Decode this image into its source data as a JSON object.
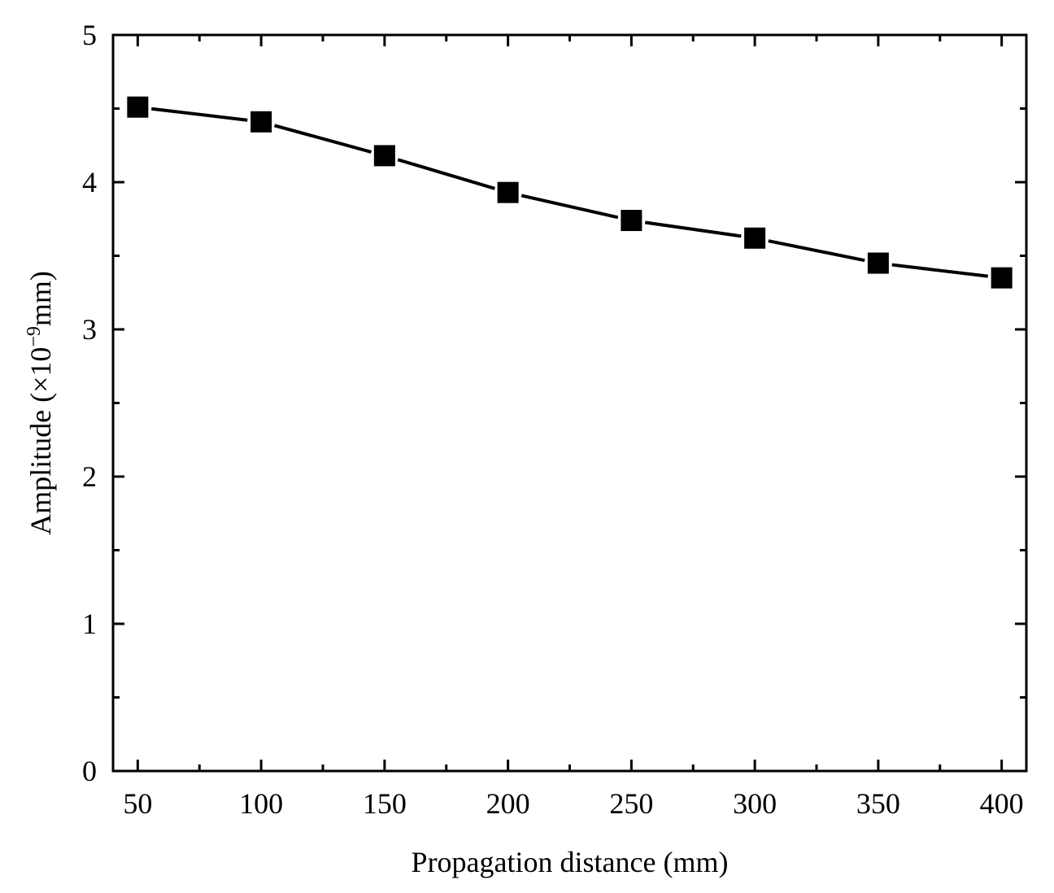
{
  "chart_data": {
    "type": "line",
    "title": "",
    "xlabel": "Propagation distance (mm)",
    "ylabel": {
      "prefix": "Amplitude (×10",
      "exponent": "−9",
      "suffix": "mm)"
    },
    "xlim": [
      40,
      410
    ],
    "ylim": [
      0,
      5
    ],
    "x_ticks": [
      50,
      100,
      150,
      200,
      250,
      300,
      350,
      400
    ],
    "x_tick_labels": [
      "50",
      "100",
      "150",
      "200",
      "250",
      "300",
      "350",
      "400"
    ],
    "x_minor_ticks": [
      75,
      125,
      175,
      225,
      275,
      325,
      375
    ],
    "y_ticks": [
      0,
      1,
      2,
      3,
      4,
      5
    ],
    "y_tick_labels": [
      "0",
      "1",
      "2",
      "3",
      "4",
      "5"
    ],
    "y_minor_ticks": [
      0.5,
      1.5,
      2.5,
      3.5,
      4.5
    ],
    "grid": false,
    "legend": "none",
    "series": [
      {
        "marker": "square",
        "color": "#000000",
        "x": [
          50,
          100,
          150,
          200,
          250,
          300,
          350,
          400
        ],
        "values": [
          4.51,
          4.41,
          4.18,
          3.93,
          3.74,
          3.62,
          3.45,
          3.35
        ]
      }
    ]
  }
}
